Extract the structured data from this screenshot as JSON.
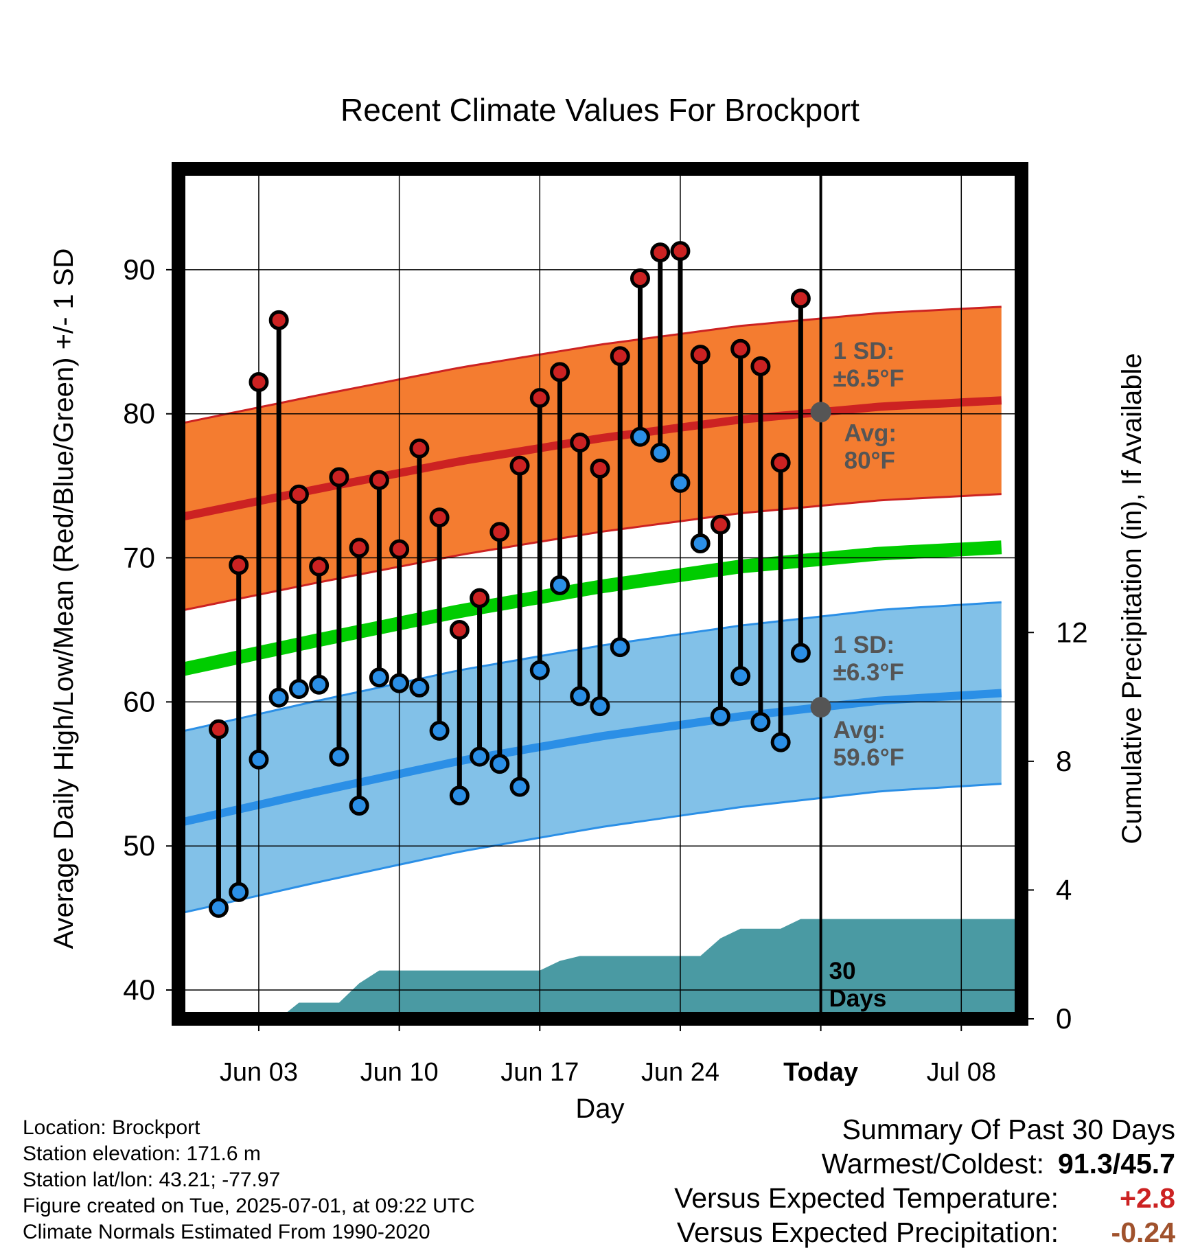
{
  "chart_data": {
    "type": "line",
    "title": "Recent Climate Values For Brockport",
    "xlabel": "Day",
    "ylabel": "Average Daily High/Low/Mean (Red/Blue/Green) +/- 1 SD",
    "y2label": "Cumulative Precipitation (in), If Available",
    "xlim": [
      "2025-05-30",
      "2025-07-11"
    ],
    "ylim": [
      38,
      97
    ],
    "y2lim": [
      0,
      26.4
    ],
    "grid": true,
    "x_ticks": [
      {
        "date": "2025-06-03",
        "label": "Jun 03"
      },
      {
        "date": "2025-06-10",
        "label": "Jun 10"
      },
      {
        "date": "2025-06-17",
        "label": "Jun 17"
      },
      {
        "date": "2025-06-24",
        "label": "Jun 24"
      },
      {
        "date": "2025-07-01",
        "label": "Today"
      },
      {
        "date": "2025-07-08",
        "label": "Jul 08"
      }
    ],
    "y_ticks": [
      40,
      50,
      60,
      70,
      80,
      90
    ],
    "y2_ticks": [
      0,
      4,
      8,
      12
    ],
    "today": "2025-07-01",
    "today_label": "30 Days",
    "normals": {
      "dates": [
        "2025-05-30",
        "2025-06-06",
        "2025-06-13",
        "2025-06-20",
        "2025-06-27",
        "2025-07-04",
        "2025-07-11"
      ],
      "high_avg": [
        72.8,
        74.8,
        76.7,
        78.3,
        79.6,
        80.5,
        81.0
      ],
      "high_sd": 6.5,
      "low_avg": [
        51.6,
        53.8,
        55.9,
        57.6,
        59.0,
        60.1,
        60.7
      ],
      "low_sd": 6.3,
      "mean_avg": [
        62.2,
        64.3,
        66.3,
        68.0,
        69.4,
        70.3,
        70.8
      ]
    },
    "annotations": {
      "high_sd": "1 SD:\n±6.5°F",
      "high_avg": "Avg:\n80°F",
      "low_sd": "1 SD:\n±6.3°F",
      "low_avg": "Avg:\n59.6°F"
    },
    "series": [
      {
        "name": "High",
        "color": "#cc2222",
        "x": [
          "2025-06-01",
          "2025-06-02",
          "2025-06-03",
          "2025-06-04",
          "2025-06-05",
          "2025-06-06",
          "2025-06-07",
          "2025-06-08",
          "2025-06-09",
          "2025-06-10",
          "2025-06-11",
          "2025-06-12",
          "2025-06-13",
          "2025-06-14",
          "2025-06-15",
          "2025-06-16",
          "2025-06-17",
          "2025-06-18",
          "2025-06-19",
          "2025-06-20",
          "2025-06-21",
          "2025-06-22",
          "2025-06-23",
          "2025-06-24",
          "2025-06-25",
          "2025-06-26",
          "2025-06-27",
          "2025-06-28",
          "2025-06-29",
          "2025-06-30"
        ],
        "values": [
          58.1,
          69.5,
          82.2,
          86.5,
          74.4,
          69.4,
          75.6,
          70.7,
          75.4,
          70.6,
          77.6,
          72.8,
          65.0,
          67.2,
          71.8,
          76.4,
          81.1,
          82.9,
          78.0,
          76.2,
          84.0,
          89.4,
          91.2,
          91.3,
          84.1,
          72.3,
          84.5,
          83.3,
          76.6,
          88.0
        ]
      },
      {
        "name": "Low",
        "color": "#2b8fe6",
        "x": [
          "2025-06-01",
          "2025-06-02",
          "2025-06-03",
          "2025-06-04",
          "2025-06-05",
          "2025-06-06",
          "2025-06-07",
          "2025-06-08",
          "2025-06-09",
          "2025-06-10",
          "2025-06-11",
          "2025-06-12",
          "2025-06-13",
          "2025-06-14",
          "2025-06-15",
          "2025-06-16",
          "2025-06-17",
          "2025-06-18",
          "2025-06-19",
          "2025-06-20",
          "2025-06-21",
          "2025-06-22",
          "2025-06-23",
          "2025-06-24",
          "2025-06-25",
          "2025-06-26",
          "2025-06-27",
          "2025-06-28",
          "2025-06-29",
          "2025-06-30"
        ],
        "values": [
          45.7,
          46.8,
          56.0,
          60.3,
          60.9,
          61.2,
          56.2,
          52.8,
          61.7,
          61.3,
          61.0,
          58.0,
          53.5,
          56.2,
          55.7,
          54.1,
          62.2,
          68.1,
          60.4,
          59.7,
          63.8,
          78.4,
          77.3,
          75.2,
          71.0,
          59.0,
          61.8,
          58.6,
          57.2,
          63.4
        ]
      }
    ],
    "precipitation": {
      "x": [
        "2025-05-30",
        "2025-06-04",
        "2025-06-05",
        "2025-06-07",
        "2025-06-08",
        "2025-06-09",
        "2025-06-10",
        "2025-06-16",
        "2025-06-17",
        "2025-06-18",
        "2025-06-19",
        "2025-06-20",
        "2025-06-24",
        "2025-06-25",
        "2025-06-26",
        "2025-06-27",
        "2025-06-28",
        "2025-06-29",
        "2025-06-30",
        "2025-07-01",
        "2025-07-11"
      ],
      "values": [
        0,
        0,
        0.5,
        0.5,
        1.1,
        1.5,
        1.5,
        1.5,
        1.5,
        1.8,
        1.95,
        1.95,
        1.95,
        1.95,
        2.5,
        2.8,
        2.8,
        2.8,
        3.1,
        3.1,
        3.1
      ]
    }
  },
  "info": {
    "location": "Location: Brockport",
    "elevation": "Station elevation: 171.6 m",
    "latlon": "Station lat/lon: 43.21; -77.97",
    "created": "Figure created on Tue, 2025-07-01, at 09:22 UTC",
    "normals": "Climate Normals Estimated From 1990-2020"
  },
  "summary": {
    "title": "Summary Of Past 30 Days",
    "warm_cold_label": "Warmest/Coldest:",
    "warm_cold_value": "91.3/45.7",
    "temp_label": "Versus Expected Temperature:",
    "temp_value": "+2.8",
    "temp_color": "#cc2222",
    "precip_label": "Versus Expected Precipitation:",
    "precip_value": "-0.24",
    "precip_color": "#a0522d"
  },
  "colors": {
    "high_band": "#f47c30",
    "high_line": "#cc2222",
    "low_band": "#82c1e8",
    "low_line": "#2b8fe6",
    "mean_line": "#00cc00",
    "precip_fill": "#4a9aa3",
    "annotation": "#555555"
  }
}
